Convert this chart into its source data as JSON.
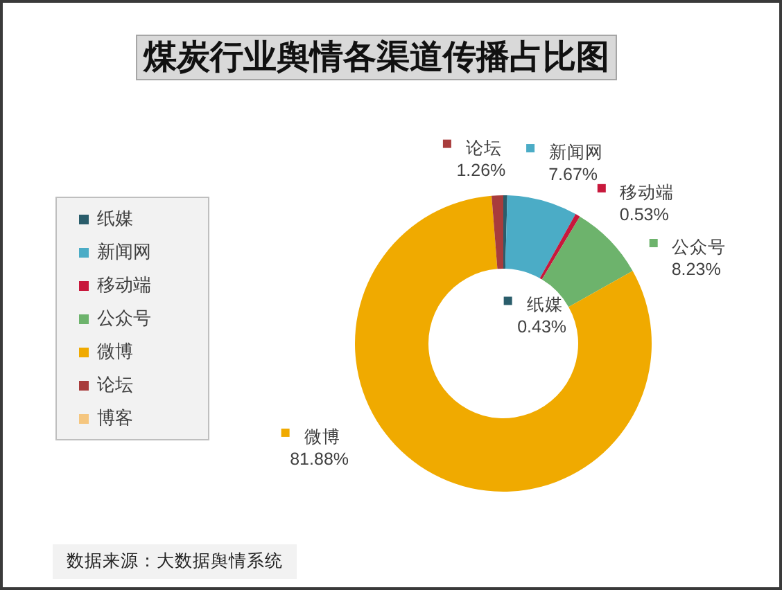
{
  "chart_data": {
    "type": "donut",
    "title": "煤炭行业舆情各渠道传播占比图",
    "categories": [
      "纸媒",
      "新闻网",
      "移动端",
      "公众号",
      "微博",
      "论坛",
      "博客"
    ],
    "values": [
      0.43,
      7.67,
      0.53,
      8.23,
      81.88,
      1.26,
      0
    ],
    "colors": [
      "#2a5d6b",
      "#4bacc6",
      "#c8183c",
      "#6db36c",
      "#f0aa00",
      "#a83c3c",
      "#f5c67f"
    ],
    "value_labels": [
      "0.43%",
      "7.67%",
      "0.53%",
      "8.23%",
      "81.88%",
      "1.26%",
      null
    ],
    "legend": "left",
    "annotations": [
      "数据来源：大数据舆情系统"
    ]
  }
}
